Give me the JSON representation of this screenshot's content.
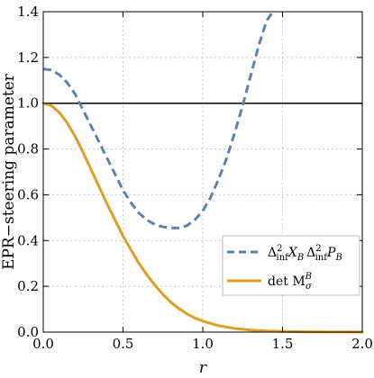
{
  "chart_data": {
    "type": "line",
    "xlabel": "r",
    "ylabel": "EPR−steering parameter",
    "xlim": [
      0.0,
      2.0
    ],
    "ylim": [
      0.0,
      1.4
    ],
    "xticks": [
      0.0,
      0.5,
      1.0,
      1.5,
      2.0
    ],
    "xtick_labels": [
      "0.0",
      "0.5",
      "1.0",
      "1.5",
      "2.0"
    ],
    "yticks": [
      0.0,
      0.2,
      0.4,
      0.6,
      0.8,
      1.0,
      1.2,
      1.4
    ],
    "ytick_labels": [
      "0.0",
      "0.2",
      "0.4",
      "0.6",
      "0.8",
      "1.0",
      "1.2",
      "1.4"
    ],
    "grid": true,
    "legend_position": "bottom-right",
    "series": [
      {
        "name": "Δ²inf X_B Δ²inf P_B",
        "style": "dashed",
        "color": "#5e81b5",
        "x": [
          0.0,
          0.05,
          0.1,
          0.15,
          0.2,
          0.25,
          0.3,
          0.35,
          0.4,
          0.45,
          0.5,
          0.55,
          0.6,
          0.65,
          0.7,
          0.75,
          0.8,
          0.85,
          0.9,
          0.95,
          1.0,
          1.05,
          1.1,
          1.15,
          1.2,
          1.25,
          1.3,
          1.35,
          1.4,
          1.44
        ],
        "y": [
          1.15,
          1.145,
          1.125,
          1.09,
          1.04,
          0.97,
          0.9,
          0.83,
          0.76,
          0.69,
          0.62,
          0.565,
          0.52,
          0.49,
          0.47,
          0.46,
          0.455,
          0.455,
          0.465,
          0.49,
          0.53,
          0.59,
          0.67,
          0.76,
          0.87,
          0.99,
          1.12,
          1.25,
          1.36,
          1.4
        ]
      },
      {
        "name": "det MσB",
        "style": "solid",
        "color": "#e19c24",
        "x": [
          0.0,
          0.05,
          0.1,
          0.15,
          0.2,
          0.25,
          0.3,
          0.35,
          0.4,
          0.45,
          0.5,
          0.55,
          0.6,
          0.65,
          0.7,
          0.75,
          0.8,
          0.85,
          0.9,
          0.95,
          1.0,
          1.1,
          1.2,
          1.3,
          1.4,
          1.5,
          1.6,
          1.7,
          1.8,
          1.9,
          2.0
        ],
        "y": [
          1.0,
          0.99,
          0.96,
          0.915,
          0.855,
          0.785,
          0.71,
          0.635,
          0.56,
          0.49,
          0.42,
          0.36,
          0.3,
          0.25,
          0.205,
          0.165,
          0.13,
          0.103,
          0.08,
          0.062,
          0.048,
          0.028,
          0.016,
          0.009,
          0.005,
          0.003,
          0.0015,
          0.001,
          0.0005,
          0.0003,
          0.0002
        ]
      }
    ],
    "reference_lines": [
      {
        "y": 1.0,
        "color": "#000000"
      }
    ]
  }
}
